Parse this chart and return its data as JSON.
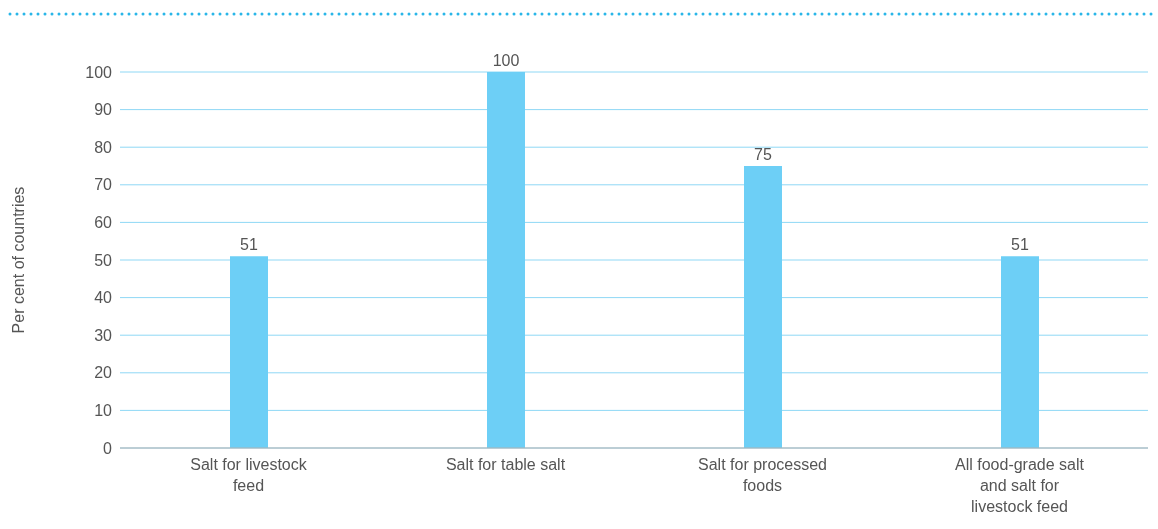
{
  "chart_data": {
    "type": "bar",
    "ylabel": "Per cent of countries",
    "categories": [
      "Salt for livestock feed",
      "Salt for table salt",
      "Salt for processed foods",
      "All food-grade salt and salt for livestock feed"
    ],
    "values": [
      51,
      100,
      75,
      51
    ],
    "color": "#6dcff6",
    "ylim": [
      0,
      100
    ],
    "yticks": [
      0,
      10,
      20,
      30,
      40,
      50,
      60,
      70,
      80,
      90,
      100
    ],
    "grid": "y",
    "data_labels": true
  }
}
